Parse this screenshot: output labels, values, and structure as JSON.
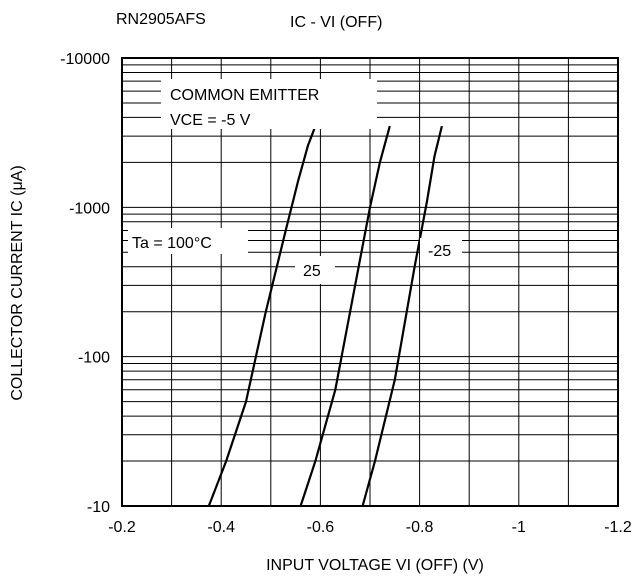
{
  "header": {
    "part_number": "RN2905AFS",
    "chart_title": "IC - VI (OFF)"
  },
  "chart_data": {
    "type": "line",
    "title": "IC - VI (OFF)",
    "xlabel": "INPUT VOLTAGE   VI (OFF) (V)",
    "ylabel": "COLLECTOR CURRENT   IC (μA)",
    "x_scale": "linear",
    "y_scale": "log",
    "xlim": [
      -0.2,
      -1.2
    ],
    "ylim": [
      -10,
      -10000
    ],
    "x_ticks": [
      -0.2,
      -0.4,
      -0.6,
      -0.8,
      -1.0,
      -1.2
    ],
    "x_tick_labels": [
      "-0.2",
      "-0.4",
      "-0.6",
      "-0.8",
      "-1",
      "-1.2"
    ],
    "y_ticks": [
      -10,
      -100,
      -1000,
      -10000
    ],
    "y_tick_labels": [
      "-10",
      "-100",
      "-1000",
      "-10000"
    ],
    "grid": true,
    "annotations": {
      "conditions_line1": "COMMON EMITTER",
      "conditions_line2": "VCE = -5 V",
      "ta_label": "Ta = 100°C",
      "label_25": "25",
      "label_m25": "-25"
    },
    "series": [
      {
        "name": "Ta = 100°C",
        "x": [
          -0.375,
          -0.41,
          -0.45,
          -0.49,
          -0.53,
          -0.555,
          -0.575,
          -0.59
        ],
        "y": [
          -10,
          -20,
          -50,
          -200,
          -700,
          -1500,
          -2600,
          -3500
        ]
      },
      {
        "name": "25",
        "x": [
          -0.56,
          -0.59,
          -0.63,
          -0.67,
          -0.7,
          -0.72,
          -0.74
        ],
        "y": [
          -10,
          -20,
          -60,
          -300,
          -1000,
          -2000,
          -3500
        ]
      },
      {
        "name": "-25",
        "x": [
          -0.685,
          -0.71,
          -0.75,
          -0.79,
          -0.815,
          -0.83,
          -0.845
        ],
        "y": [
          -10,
          -20,
          -70,
          -400,
          -1100,
          -2200,
          -3500
        ]
      }
    ]
  }
}
